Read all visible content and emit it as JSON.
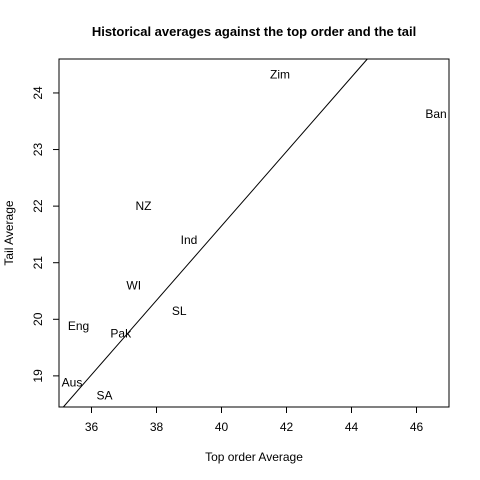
{
  "chart_data": {
    "type": "scatter",
    "title": "Historical averages against the top order and the tail",
    "xlabel": "Top order Average",
    "ylabel": "Tail Average",
    "xlim": [
      35.0,
      47.0
    ],
    "ylim": [
      18.45,
      24.6
    ],
    "x_ticks": [
      36,
      38,
      40,
      42,
      44,
      46
    ],
    "y_ticks": [
      19,
      20,
      21,
      22,
      23,
      24
    ],
    "grid": false,
    "marker": "text-label",
    "points": [
      {
        "label": "Zim",
        "x": 41.8,
        "y": 24.33
      },
      {
        "label": "Ban",
        "x": 46.6,
        "y": 23.63
      },
      {
        "label": "NZ",
        "x": 37.6,
        "y": 22.0
      },
      {
        "label": "Ind",
        "x": 39.0,
        "y": 21.4
      },
      {
        "label": "WI",
        "x": 37.3,
        "y": 20.6
      },
      {
        "label": "SL",
        "x": 38.7,
        "y": 20.15
      },
      {
        "label": "Eng",
        "x": 35.6,
        "y": 19.88
      },
      {
        "label": "Pak",
        "x": 36.9,
        "y": 19.75
      },
      {
        "label": "Aus",
        "x": 35.4,
        "y": 18.88
      },
      {
        "label": "SA",
        "x": 36.4,
        "y": 18.65
      }
    ],
    "fit_line": {
      "type": "linear",
      "intercept": -4.65,
      "slope": 0.6575,
      "color": "#000000"
    }
  }
}
